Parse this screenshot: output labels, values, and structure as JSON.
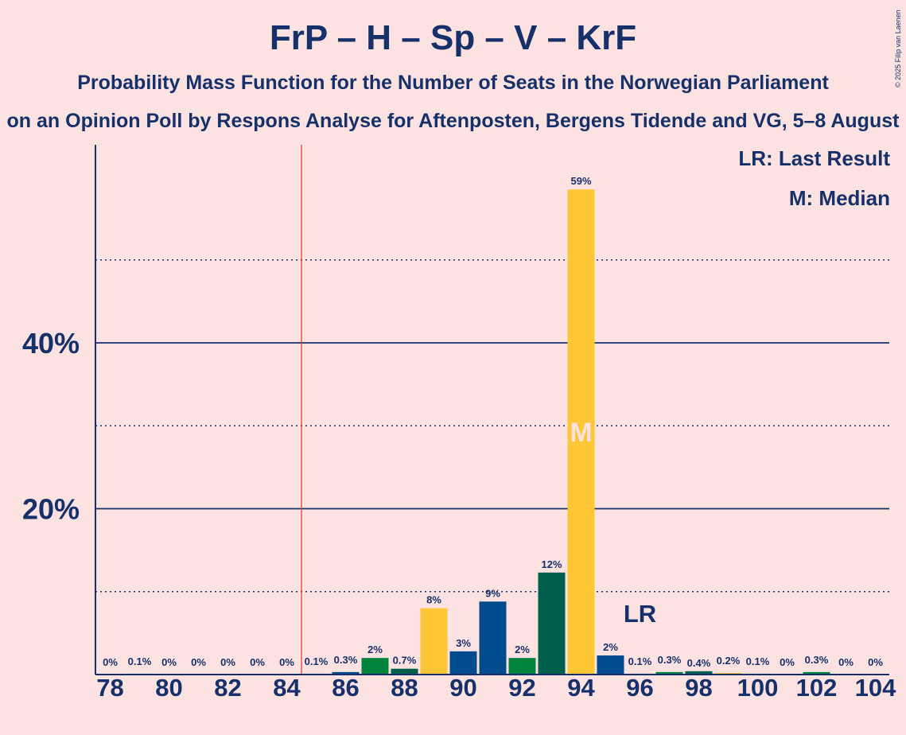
{
  "chart_data": {
    "type": "bar",
    "title": "FrP – H – Sp – V – KrF",
    "subtitle": "Probability Mass Function for the Number of Seats in the Norwegian Parliament",
    "source": "on an Opinion Poll by Respons Analyse for Aftenposten, Bergens Tidende and VG, 5–8 August",
    "copyright": "© 2025 Filip van Laenen",
    "legend": {
      "last_result": "LR: Last Result",
      "median": "M: Median",
      "placement": "top-right"
    },
    "xlabel": "",
    "ylabel": "",
    "ylim": [
      0,
      64
    ],
    "y_ticks": [
      {
        "value": 20,
        "label": "20%"
      },
      {
        "value": 40,
        "label": "40%"
      }
    ],
    "y_dotted_lines": [
      10,
      30,
      50
    ],
    "x_ticks": [
      78,
      80,
      82,
      84,
      86,
      88,
      90,
      92,
      94,
      96,
      98,
      100,
      102,
      104
    ],
    "majority_line_x": 84.5,
    "last_result_seat": 96,
    "last_result_label": "LR",
    "median_seat": 94,
    "median_label": "M",
    "colors": {
      "background": "#FDE2E2",
      "text": "#16306A",
      "axis": "#16306A",
      "majority_line": "#E8302C",
      "parties": [
        "#005F4B",
        "#00843D",
        "#F8C21D",
        "#004B8D",
        "#FFC735"
      ]
    },
    "bars": [
      {
        "seat": 78,
        "value": 0.0,
        "label": "0%",
        "color": "#005F4B"
      },
      {
        "seat": 79,
        "value": 0.1,
        "label": "0.1%",
        "color": "#00843D"
      },
      {
        "seat": 80,
        "value": 0.0,
        "label": "0%",
        "color": "#F8C21D"
      },
      {
        "seat": 81,
        "value": 0.0,
        "label": "0%",
        "color": "#004B8D"
      },
      {
        "seat": 82,
        "value": 0.0,
        "label": "0%",
        "color": "#00843D"
      },
      {
        "seat": 83,
        "value": 0.0,
        "label": "0%",
        "color": "#005F4B"
      },
      {
        "seat": 84,
        "value": 0.0,
        "label": "0%",
        "color": "#FFC735"
      },
      {
        "seat": 85,
        "value": 0.1,
        "label": "0.1%",
        "color": "#004B8D"
      },
      {
        "seat": 86,
        "value": 0.3,
        "label": "0.3%",
        "color": "#004B8D"
      },
      {
        "seat": 87,
        "value": 2.0,
        "label": "2%",
        "color": "#00843D"
      },
      {
        "seat": 88,
        "value": 0.7,
        "label": "0.7%",
        "color": "#005F4B"
      },
      {
        "seat": 89,
        "value": 8.0,
        "label": "8%",
        "color": "#FFC735"
      },
      {
        "seat": 90,
        "value": 2.8,
        "label": "3%",
        "color": "#004B8D"
      },
      {
        "seat": 91,
        "value": 8.8,
        "label": "9%",
        "color": "#004B8D"
      },
      {
        "seat": 92,
        "value": 2.0,
        "label": "2%",
        "color": "#00843D"
      },
      {
        "seat": 93,
        "value": 12.3,
        "label": "12%",
        "color": "#005F4B"
      },
      {
        "seat": 94,
        "value": 58.5,
        "label": "59%",
        "color": "#FFC735"
      },
      {
        "seat": 95,
        "value": 2.3,
        "label": "2%",
        "color": "#004B8D"
      },
      {
        "seat": 96,
        "value": 0.1,
        "label": "0.1%",
        "color": "#004B8D"
      },
      {
        "seat": 97,
        "value": 0.3,
        "label": "0.3%",
        "color": "#00843D"
      },
      {
        "seat": 98,
        "value": 0.4,
        "label": "0.4%",
        "color": "#005F4B"
      },
      {
        "seat": 99,
        "value": 0.2,
        "label": "0.2%",
        "color": "#FFC735"
      },
      {
        "seat": 100,
        "value": 0.1,
        "label": "0.1%",
        "color": "#004B8D"
      },
      {
        "seat": 101,
        "value": 0.0,
        "label": "0%",
        "color": "#004B8D"
      },
      {
        "seat": 102,
        "value": 0.3,
        "label": "0.3%",
        "color": "#00843D"
      },
      {
        "seat": 103,
        "value": 0.0,
        "label": "0%",
        "color": "#005F4B"
      },
      {
        "seat": 104,
        "value": 0.0,
        "label": "0%",
        "color": "#FFC735"
      }
    ]
  }
}
